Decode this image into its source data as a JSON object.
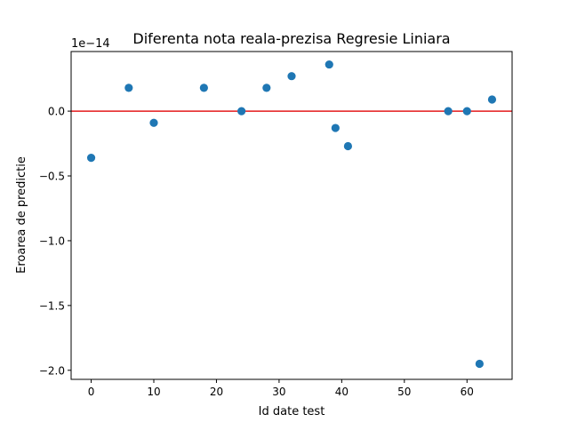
{
  "chart_data": {
    "type": "scatter",
    "title": "Diferenta nota reala-prezisa Regresie Liniara",
    "xlabel": "Id date test",
    "ylabel": "Eroarea de predictie",
    "y_offset_label": "1e−14",
    "xlim": [
      -3.2,
      67.2
    ],
    "ylim": [
      -2.07,
      0.46
    ],
    "x_ticks": [
      0,
      10,
      20,
      30,
      40,
      50,
      60
    ],
    "x_tick_labels": [
      "0",
      "10",
      "20",
      "30",
      "40",
      "50",
      "60"
    ],
    "y_ticks": [
      -2.0,
      -1.5,
      -1.0,
      -0.5,
      0.0
    ],
    "y_tick_labels": [
      "−2.0",
      "−1.5",
      "−1.0",
      "−0.5",
      "0.0"
    ],
    "grid": false,
    "point_color": "#1f77b4",
    "points": [
      {
        "x": 0,
        "y": -0.36
      },
      {
        "x": 6,
        "y": 0.18
      },
      {
        "x": 10,
        "y": -0.09
      },
      {
        "x": 18,
        "y": 0.18
      },
      {
        "x": 24,
        "y": 0.0
      },
      {
        "x": 28,
        "y": 0.18
      },
      {
        "x": 32,
        "y": 0.27
      },
      {
        "x": 38,
        "y": 0.36
      },
      {
        "x": 39,
        "y": -0.13
      },
      {
        "x": 41,
        "y": -0.27
      },
      {
        "x": 57,
        "y": 0.0
      },
      {
        "x": 60,
        "y": 0.0
      },
      {
        "x": 62,
        "y": -1.95
      },
      {
        "x": 64,
        "y": 0.09
      }
    ],
    "reference_line": {
      "y": 0.0,
      "color": "#e41a1c"
    }
  }
}
